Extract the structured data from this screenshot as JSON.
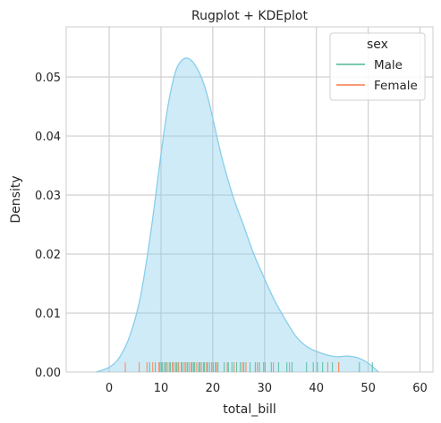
{
  "chart_data": {
    "type": "area",
    "title": "Rugplot + KDEplot",
    "xlabel": "total_bill",
    "ylabel": "Density",
    "xlim": [
      -8.3,
      62.5
    ],
    "ylim": [
      0,
      0.0585
    ],
    "xticks": [
      0,
      10,
      20,
      30,
      40,
      50,
      60
    ],
    "xtick_labels": [
      "0",
      "10",
      "20",
      "30",
      "40",
      "50",
      "60"
    ],
    "yticks": [
      0,
      0.01,
      0.02,
      0.03,
      0.04,
      0.05
    ],
    "ytick_labels": [
      "0.00",
      "0.01",
      "0.02",
      "0.03",
      "0.04",
      "0.05"
    ],
    "grid": true,
    "legend": {
      "title": "sex",
      "placement": "top-right",
      "entries": [
        {
          "label": "Male",
          "color": "#66c2a5"
        },
        {
          "label": "Female",
          "color": "#fc8d62"
        }
      ]
    },
    "kde": {
      "color": "#87ceeb",
      "x": [
        -2.5,
        0,
        2,
        4,
        6,
        8,
        10,
        11,
        12,
        13,
        14,
        15,
        16,
        17,
        18,
        19,
        20,
        21,
        22,
        24,
        26,
        28,
        30,
        32,
        34,
        36,
        38,
        40,
        42,
        44,
        46,
        48,
        50,
        52
      ],
      "y": [
        0.0,
        0.0008,
        0.0025,
        0.0062,
        0.0126,
        0.0235,
        0.0369,
        0.0432,
        0.0481,
        0.0514,
        0.0528,
        0.0532,
        0.0527,
        0.0514,
        0.0495,
        0.0467,
        0.043,
        0.0391,
        0.0355,
        0.0295,
        0.0247,
        0.0198,
        0.0158,
        0.012,
        0.0089,
        0.0061,
        0.0044,
        0.0035,
        0.0029,
        0.0026,
        0.0027,
        0.0024,
        0.0015,
        0.0
      ]
    },
    "series": [
      {
        "name": "Male",
        "color": "#66c2a5",
        "values": [
          7.8,
          8.9,
          9.8,
          10.3,
          10.7,
          11.2,
          11.8,
          12.4,
          13.0,
          13.4,
          14.1,
          14.8,
          15.4,
          16.0,
          16.5,
          17.3,
          17.8,
          18.4,
          19.0,
          19.8,
          20.5,
          21.0,
          22.2,
          23.0,
          23.7,
          24.6,
          25.3,
          26.0,
          27.2,
          28.2,
          29.0,
          30.1,
          31.3,
          32.7,
          34.3,
          35.3,
          38.1,
          39.4,
          40.2,
          41.2,
          43.1,
          44.3,
          48.3,
          50.8
        ]
      },
      {
        "name": "Female",
        "color": "#fc8d62",
        "values": [
          3.1,
          5.8,
          7.3,
          8.4,
          9.6,
          10.1,
          10.9,
          11.6,
          12.2,
          12.8,
          13.3,
          13.9,
          14.5,
          15.1,
          15.8,
          16.3,
          16.9,
          17.5,
          18.2,
          18.8,
          19.4,
          20.1,
          20.7,
          22.8,
          24.1,
          25.7,
          26.4,
          28.6,
          29.8,
          31.7,
          34.8,
          42.2,
          44.3
        ]
      }
    ]
  }
}
